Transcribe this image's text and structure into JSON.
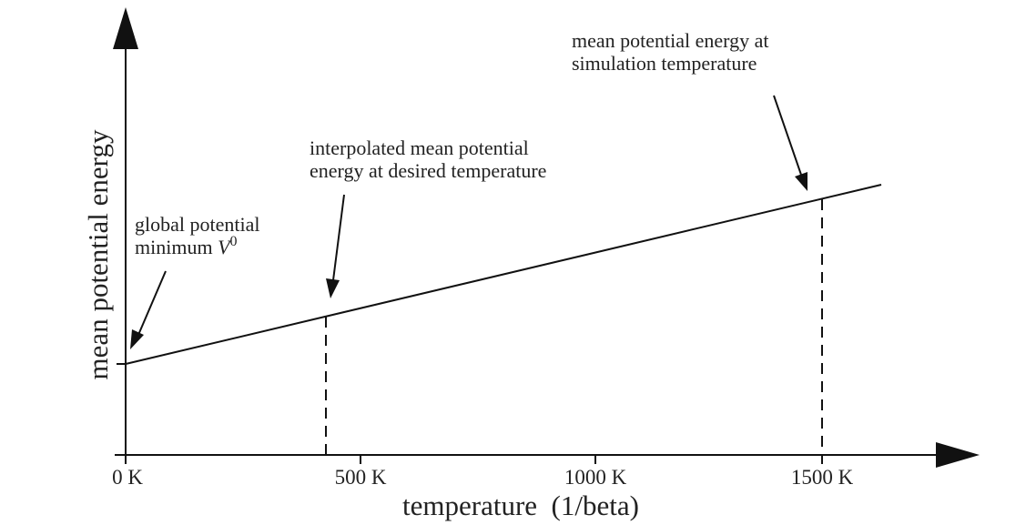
{
  "y_axis_label": "mean potential energy",
  "x_axis_label": "temperature  (1/beta)",
  "x_ticks": [
    "0 K",
    "500 K",
    "1000 K",
    "1500 K"
  ],
  "annotations": {
    "minimum": {
      "line1": "global potential",
      "line2": "minimum",
      "variable": "V",
      "superscript": "0"
    },
    "interpolated": {
      "line1": "interpolated mean potential",
      "line2": "energy at desired temperature"
    },
    "simulation": {
      "line1": "mean potential energy at",
      "line2": "simulation temperature"
    }
  }
}
